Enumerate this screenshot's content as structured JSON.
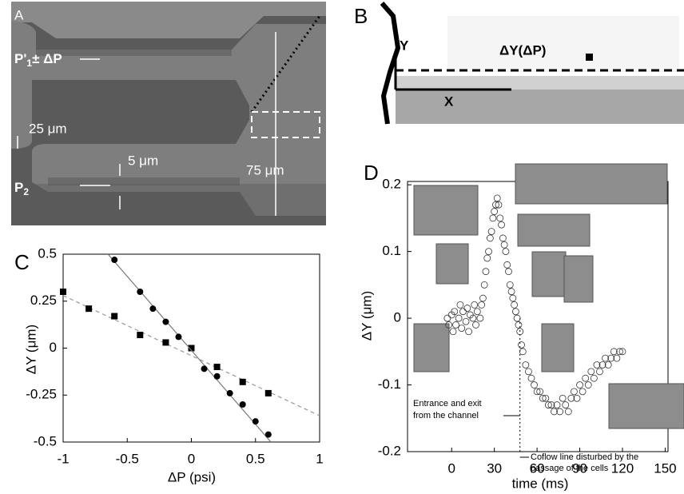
{
  "panel_a": {
    "letter": "A",
    "p1_base": "P'",
    "p1_sub": "1",
    "p1_suffix": "± ΔP",
    "p2_base": "P",
    "p2_sub": "2",
    "width_25": "25 μm",
    "width_5": "5 μm",
    "width_75": "75 μm"
  },
  "panel_b": {
    "letter": "B",
    "y_axis": "Y",
    "x_axis": "X",
    "delta_label": "ΔY(ΔP)"
  },
  "chart_data": [
    {
      "type": "scatter",
      "letter": "C",
      "xlabel": "ΔP (psi)",
      "ylabel": "ΔY (μm)",
      "xlim": [
        -1,
        1
      ],
      "ylim": [
        -0.5,
        0.5
      ],
      "xticks": [
        -1,
        -0.5,
        0,
        0.5,
        1
      ],
      "yticks": [
        -0.5,
        -0.25,
        0,
        0.25,
        0.5
      ],
      "series": [
        {
          "marker": "square",
          "color": "#000000",
          "x": [
            -1,
            -0.8,
            -0.6,
            -0.4,
            -0.2,
            0,
            0.2,
            0.4,
            0.6
          ],
          "values": [
            0.3,
            0.21,
            0.17,
            0.07,
            0.03,
            0.0,
            -0.1,
            -0.18,
            -0.24
          ],
          "fit": {
            "x": [
              -1,
              1
            ],
            "values": [
              0.28,
              -0.36
            ],
            "dashed": true,
            "color": "#999999"
          }
        },
        {
          "marker": "circle",
          "color": "#000000",
          "x": [
            -0.6,
            -0.4,
            -0.3,
            -0.2,
            -0.1,
            0.1,
            0.2,
            0.3,
            0.4,
            0.5,
            0.6
          ],
          "values": [
            0.47,
            0.3,
            0.21,
            0.14,
            0.06,
            -0.11,
            -0.15,
            -0.24,
            -0.3,
            -0.39,
            -0.46
          ],
          "fit": {
            "x": [
              -0.65,
              0.62
            ],
            "values": [
              0.5,
              -0.5
            ],
            "dashed": false,
            "color": "#777777"
          }
        }
      ]
    },
    {
      "type": "scatter",
      "letter": "D",
      "xlabel": "time (ms)",
      "ylabel": "ΔY (μm)",
      "xlim": [
        -31,
        152
      ],
      "ylim": [
        -0.2,
        0.205
      ],
      "xticks": [
        0,
        30,
        60,
        90,
        120,
        150
      ],
      "yticks": [
        -0.2,
        -0.1,
        0,
        0.1,
        0.2
      ],
      "vline": 48,
      "annotations": [
        "Entrance and exit",
        "from the channel",
        "Coflow line disturbed by the",
        "passage of the cells"
      ],
      "series": [
        {
          "marker": "open-circle",
          "color": "#333333",
          "x": [
            -3,
            -2,
            0,
            1,
            2,
            3,
            5,
            6,
            7,
            8,
            10,
            11,
            12,
            13,
            15,
            16,
            17,
            18,
            20,
            21,
            22,
            23,
            24,
            25,
            26,
            27,
            28,
            29,
            30,
            31,
            32,
            33,
            34,
            35,
            36,
            37,
            38,
            39,
            40,
            41,
            42,
            43,
            44,
            45,
            46,
            47,
            48,
            49,
            50,
            52,
            54,
            56,
            58,
            60,
            62,
            64,
            66,
            68,
            70,
            72,
            74,
            76,
            78,
            80,
            82,
            84,
            86,
            88,
            90,
            92,
            94,
            96,
            98,
            100,
            102,
            104,
            106,
            108,
            110,
            112,
            114,
            116,
            118,
            120
          ],
          "values": [
            0.0,
            -0.01,
            0.005,
            -0.02,
            0.01,
            -0.01,
            0.0,
            0.02,
            -0.015,
            0.01,
            -0.005,
            0.015,
            -0.02,
            0.005,
            0.0,
            0.02,
            -0.01,
            0.01,
            0.0,
            0.02,
            0.03,
            0.05,
            0.07,
            0.09,
            0.1,
            0.12,
            0.13,
            0.15,
            0.16,
            0.17,
            0.18,
            0.17,
            0.15,
            0.14,
            0.12,
            0.11,
            0.1,
            0.08,
            0.07,
            0.05,
            0.04,
            0.03,
            0.02,
            0.01,
            0.0,
            -0.01,
            -0.02,
            -0.04,
            -0.05,
            -0.07,
            -0.08,
            -0.09,
            -0.1,
            -0.11,
            -0.11,
            -0.12,
            -0.12,
            -0.13,
            -0.13,
            -0.14,
            -0.13,
            -0.14,
            -0.12,
            -0.13,
            -0.14,
            -0.12,
            -0.11,
            -0.12,
            -0.1,
            -0.11,
            -0.09,
            -0.1,
            -0.08,
            -0.09,
            -0.07,
            -0.08,
            -0.07,
            -0.06,
            -0.07,
            -0.06,
            -0.05,
            -0.06,
            -0.05,
            -0.05
          ]
        }
      ]
    }
  ]
}
